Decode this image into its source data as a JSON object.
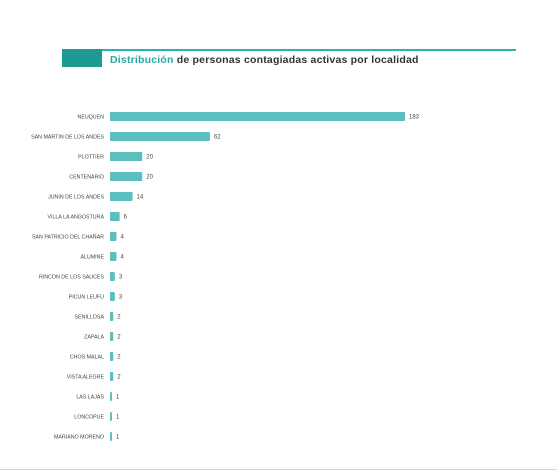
{
  "page": {
    "title_accent": "Distribución",
    "title_rest": " de personas contagiadas activas por localidad"
  },
  "colors": {
    "bar": "#5bbfc0",
    "accent": "#2aa8a5",
    "swatch": "#1d9b93",
    "label_text": "#444444"
  },
  "chart_data": {
    "type": "bar",
    "orientation": "horizontal",
    "title": "Distribución de personas contagiadas activas por localidad",
    "xlabel": "",
    "ylabel": "",
    "grid": false,
    "legend": "none",
    "xlim": [
      0,
      183
    ],
    "categories": [
      "NEUQUEN",
      "SAN MARTIN DE LOS ANDES",
      "PLOTTIER",
      "CENTENARIO",
      "JUNIN DE LOS ANDES",
      "VILLA LA ANGOSTURA",
      "SAN PATRICIO DEL CHAÑAR",
      "ALUMINE",
      "RINCON DE LOS SAUCES",
      "PICUN LEUFU",
      "SENILLOSA",
      "ZAPALA",
      "CHOS MALAL",
      "VISTA ALEGRE",
      "LAS LAJAS",
      "LONCOPUE",
      "MARIANO MORENO"
    ],
    "values": [
      183,
      62,
      20,
      20,
      14,
      6,
      4,
      4,
      3,
      3,
      2,
      2,
      2,
      2,
      1,
      1,
      1
    ]
  }
}
